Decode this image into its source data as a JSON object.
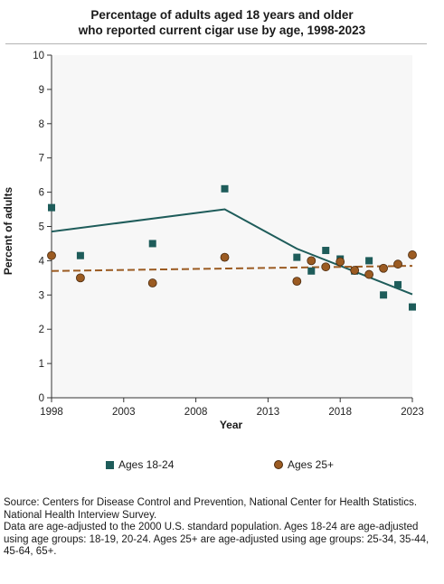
{
  "chart_data": {
    "type": "scatter",
    "title_lines": [
      "Percentage of adults aged 18 years and older",
      "who reported current cigar use by age, 1998-2023"
    ],
    "xlabel": "Year",
    "ylabel": "Percent of adults",
    "xlim": [
      1998,
      2023
    ],
    "ylim": [
      0,
      10
    ],
    "x_ticks": [
      1998,
      2003,
      2008,
      2013,
      2018,
      2023
    ],
    "y_ticks": [
      0,
      1,
      2,
      3,
      4,
      5,
      6,
      7,
      8,
      9,
      10
    ],
    "grid": false,
    "legend_position": "bottom",
    "series": [
      {
        "name": "Ages 18-24",
        "marker": "square",
        "color": "#1e5c5a",
        "points": [
          {
            "x": 1998,
            "y": 5.55
          },
          {
            "x": 2000,
            "y": 4.15
          },
          {
            "x": 2005,
            "y": 4.5
          },
          {
            "x": 2010,
            "y": 6.1
          },
          {
            "x": 2015,
            "y": 4.1
          },
          {
            "x": 2016,
            "y": 3.7
          },
          {
            "x": 2017,
            "y": 4.3
          },
          {
            "x": 2018,
            "y": 4.05
          },
          {
            "x": 2019,
            "y": 3.7
          },
          {
            "x": 2020,
            "y": 4.0
          },
          {
            "x": 2021,
            "y": 3.0
          },
          {
            "x": 2022,
            "y": 3.3
          },
          {
            "x": 2023,
            "y": 2.65
          }
        ],
        "trend": {
          "style": "solid",
          "points": [
            {
              "x": 1998,
              "y": 4.85
            },
            {
              "x": 2010,
              "y": 5.5
            },
            {
              "x": 2015,
              "y": 4.35
            },
            {
              "x": 2023,
              "y": 3.02
            }
          ]
        }
      },
      {
        "name": "Ages 25+",
        "marker": "circle",
        "color": "#9b5b22",
        "points": [
          {
            "x": 1998,
            "y": 4.15
          },
          {
            "x": 2000,
            "y": 3.5
          },
          {
            "x": 2005,
            "y": 3.35
          },
          {
            "x": 2010,
            "y": 4.1
          },
          {
            "x": 2015,
            "y": 3.4
          },
          {
            "x": 2016,
            "y": 4.0
          },
          {
            "x": 2017,
            "y": 3.82
          },
          {
            "x": 2018,
            "y": 3.97
          },
          {
            "x": 2019,
            "y": 3.72
          },
          {
            "x": 2020,
            "y": 3.6
          },
          {
            "x": 2021,
            "y": 3.78
          },
          {
            "x": 2022,
            "y": 3.9
          },
          {
            "x": 2023,
            "y": 4.17
          }
        ],
        "trend": {
          "style": "dashed",
          "points": [
            {
              "x": 1998,
              "y": 3.7
            },
            {
              "x": 2023,
              "y": 3.85
            }
          ]
        }
      }
    ]
  },
  "legend": {
    "series_1_label": "Ages 18-24",
    "series_2_label": "Ages 25+"
  },
  "source": {
    "line1": "Source: Centers for Disease Control and Prevention, National Center for Health Statistics. National Health Interview Survey.",
    "line2": "Data are age-adjusted to the 2000 U.S. standard population. Ages 18-24 are age-adjusted using age groups: 18-19, 20-24. Ages 25+ are age-adjusted using age groups: 25-34, 35-44, 45-64, 65+."
  }
}
